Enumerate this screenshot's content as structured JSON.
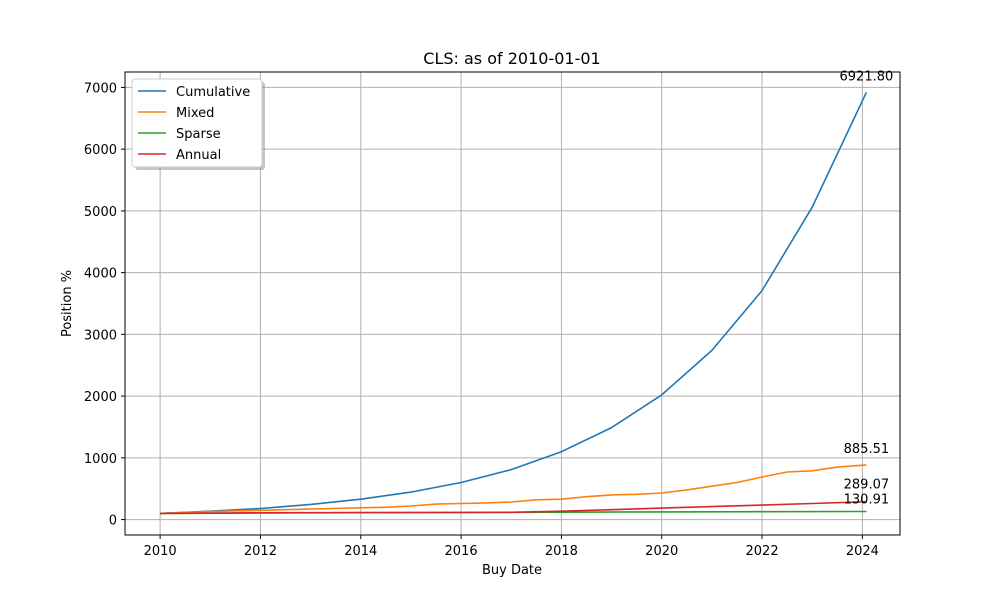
{
  "chart_data": {
    "type": "line",
    "title": "CLS: as of 2010-01-01",
    "xlabel": "Buy Date",
    "ylabel": "Position %",
    "xlim": [
      2009.3,
      2024.75
    ],
    "ylim": [
      -250,
      7250
    ],
    "x_ticks": [
      2010,
      2012,
      2014,
      2016,
      2018,
      2020,
      2022,
      2024
    ],
    "x_tick_labels": [
      "2010",
      "2012",
      "2014",
      "2016",
      "2018",
      "2020",
      "2022",
      "2024"
    ],
    "y_ticks": [
      0,
      1000,
      2000,
      3000,
      4000,
      5000,
      6000,
      7000
    ],
    "y_tick_labels": [
      "0",
      "1000",
      "2000",
      "3000",
      "4000",
      "5000",
      "6000",
      "7000"
    ],
    "grid": true,
    "legend_position": "top-left",
    "series": [
      {
        "name": "Cumulative",
        "color": "#1f77b4",
        "end_label": "6921.80",
        "x": [
          2010,
          2011,
          2012,
          2013,
          2014,
          2015,
          2016,
          2017,
          2018,
          2019,
          2020,
          2021,
          2022,
          2023,
          2024.08
        ],
        "y": [
          100,
          135,
          180,
          245,
          330,
          445,
          600,
          810,
          1100,
          1490,
          2020,
          2740,
          3710,
          5060,
          6921.8
        ]
      },
      {
        "name": "Mixed",
        "color": "#ff7f0e",
        "end_label": "885.51",
        "x": [
          2010,
          2011,
          2012,
          2013,
          2014,
          2014.5,
          2015,
          2015.5,
          2016,
          2016.5,
          2017,
          2017.5,
          2018,
          2018.5,
          2019,
          2019.5,
          2020,
          2020.5,
          2021,
          2021.5,
          2022,
          2022.5,
          2023,
          2023.5,
          2024.08
        ],
        "y": [
          100,
          130,
          150,
          170,
          190,
          200,
          220,
          250,
          260,
          270,
          285,
          320,
          330,
          370,
          400,
          410,
          430,
          480,
          540,
          600,
          690,
          770,
          790,
          850,
          885.51
        ]
      },
      {
        "name": "Sparse",
        "color": "#2ca02c",
        "end_label": "130.91",
        "x": [
          2010,
          2012,
          2014,
          2016,
          2018,
          2020,
          2022,
          2024.08
        ],
        "y": [
          100,
          107,
          112,
          116,
          120,
          124,
          127,
          130.91
        ]
      },
      {
        "name": "Annual",
        "color": "#d62728",
        "end_label": "289.07",
        "x": [
          2010,
          2012,
          2014,
          2016,
          2017,
          2018,
          2019,
          2020,
          2021,
          2022,
          2023,
          2024.08
        ],
        "y": [
          100,
          110,
          115,
          115,
          118,
          135,
          160,
          185,
          210,
          235,
          260,
          289.07
        ]
      }
    ]
  }
}
